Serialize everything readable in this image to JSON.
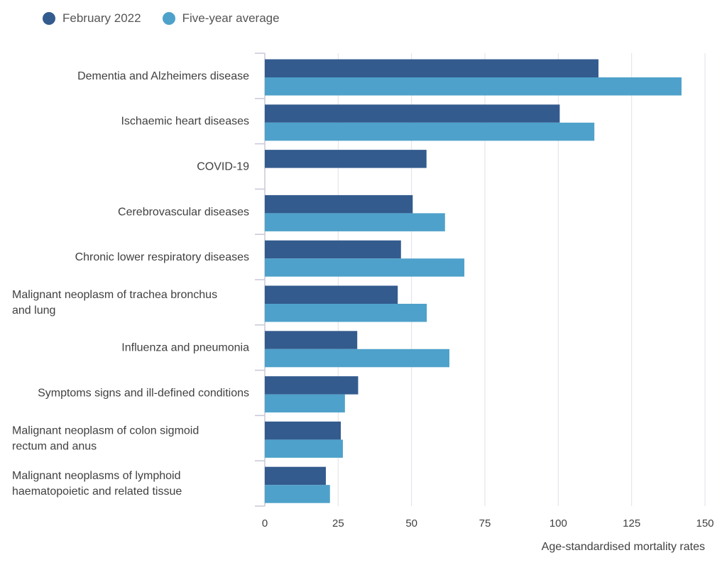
{
  "colors": {
    "february_2022": "#335b8e",
    "five_year_average": "#4ea1ca",
    "grid": "#e0e0e8",
    "axis": "#c8c8d8"
  },
  "legend": [
    {
      "label": "February 2022",
      "color": "#335b8e"
    },
    {
      "label": "Five-year average",
      "color": "#4ea1ca"
    }
  ],
  "chart_data": {
    "type": "bar",
    "orientation": "horizontal",
    "categories": [
      [
        "Dementia and Alzheimers disease"
      ],
      [
        "Ischaemic heart diseases"
      ],
      [
        "COVID-19"
      ],
      [
        "Cerebrovascular diseases"
      ],
      [
        "Chronic lower respiratory diseases"
      ],
      [
        "Malignant neoplasm of trachea bronchus",
        "and lung"
      ],
      [
        "Influenza and pneumonia"
      ],
      [
        "Symptoms signs and ill-defined conditions"
      ],
      [
        "Malignant neoplasm of colon sigmoid",
        "rectum and anus"
      ],
      [
        "Malignant neoplasms of lymphoid",
        "haematopoietic and related tissue"
      ]
    ],
    "series": [
      {
        "name": "February 2022",
        "values": [
          113.7,
          100.5,
          55.1,
          50.4,
          46.4,
          45.3,
          31.5,
          31.8,
          25.9,
          20.8
        ]
      },
      {
        "name": "Five-year average",
        "values": [
          142.0,
          112.3,
          null,
          61.4,
          68.0,
          55.2,
          62.9,
          27.3,
          26.6,
          22.2
        ]
      }
    ],
    "xlim": [
      0,
      150
    ],
    "xticks": [
      "0",
      "25",
      "50",
      "75",
      "100",
      "125",
      "150"
    ],
    "xlabel": "Age-standardised mortality rates",
    "ylabel": "",
    "title": "",
    "grid": true,
    "legend_position": "top-left"
  }
}
